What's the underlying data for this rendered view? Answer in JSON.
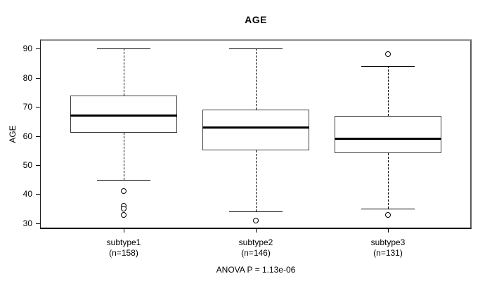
{
  "chart_data": {
    "type": "boxplot",
    "title": "AGE",
    "ylabel": "AGE",
    "xlabel": "",
    "annotation": "ANOVA P = 1.13e-06",
    "ylim": [
      28.3,
      92.7
    ],
    "yticks": [
      30,
      40,
      50,
      60,
      70,
      80,
      90
    ],
    "grid": false,
    "legend": "none",
    "groups": [
      {
        "label": "subtype1",
        "sublabel": "(n=158)",
        "n": 158,
        "whisker_low": 45,
        "q1": 61,
        "median": 67,
        "q3": 74,
        "whisker_high": 90,
        "outliers": [
          41,
          36,
          35,
          33
        ]
      },
      {
        "label": "subtype2",
        "sublabel": "(n=146)",
        "n": 146,
        "whisker_low": 34,
        "q1": 55,
        "median": 63,
        "q3": 69,
        "whisker_high": 90,
        "outliers": [
          31
        ]
      },
      {
        "label": "subtype3",
        "sublabel": "(n=131)",
        "n": 131,
        "whisker_low": 35,
        "q1": 54,
        "median": 59,
        "q3": 67,
        "whisker_high": 84,
        "outliers": [
          88,
          33
        ]
      }
    ],
    "colors": {
      "line": "#000000",
      "box_border": "#3d3d3d",
      "frame": "#8c8c8c",
      "background": "#ffffff"
    }
  }
}
